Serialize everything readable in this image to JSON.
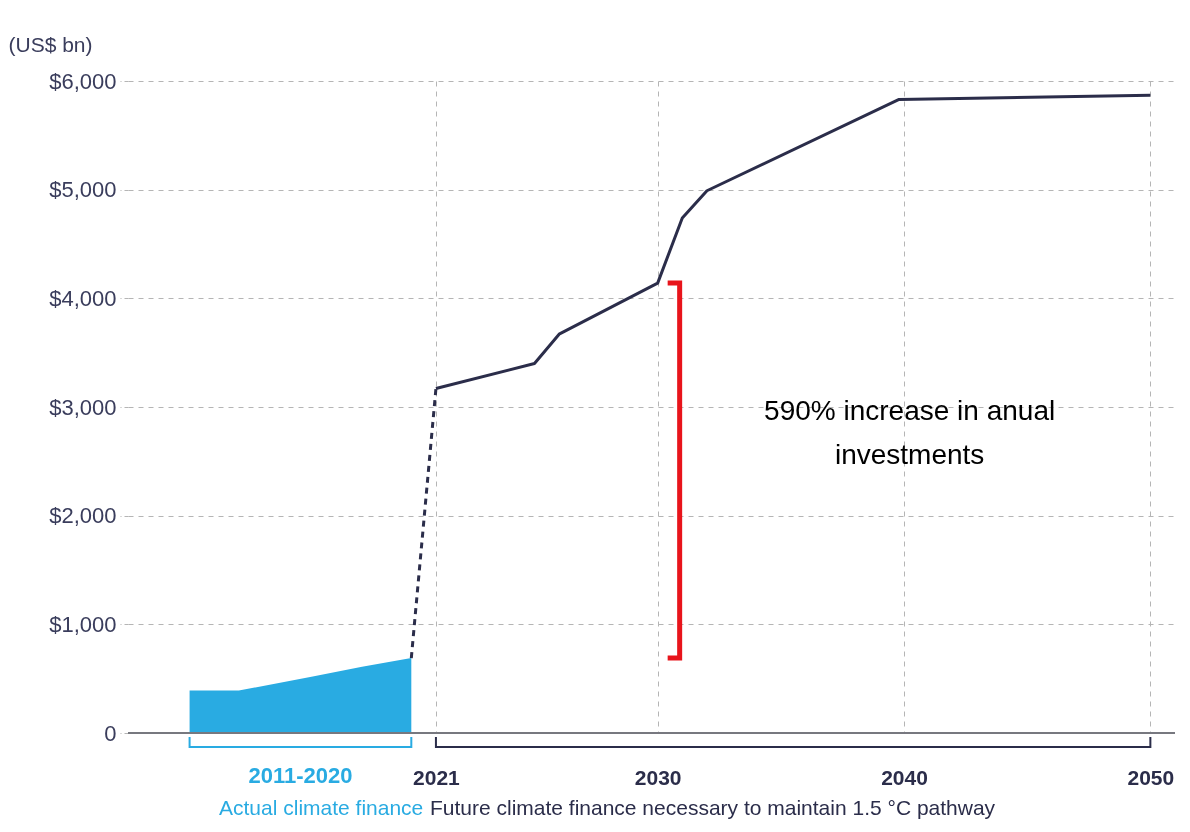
{
  "chart_data": {
    "type": "line",
    "ylabel": "(US$ bn)",
    "xlim": [
      2008.5,
      2051
    ],
    "xticks": [
      2021,
      2030,
      2040,
      2050
    ],
    "ylim": [
      0,
      6000
    ],
    "yticks": [
      0,
      {
        "value": 1000,
        "label": "$1,000"
      },
      {
        "value": 2000,
        "label": "$2,000"
      },
      {
        "value": 3000,
        "label": "$3,000"
      },
      {
        "value": 4000,
        "label": "$4,000"
      },
      {
        "value": 5000,
        "label": "$5,000"
      },
      {
        "value": 6000,
        "label": "$6,000"
      }
    ],
    "grid": true,
    "series": [
      {
        "type": "area",
        "color": "#29abe2",
        "x": [
          2011,
          2013,
          2016,
          2018,
          2020
        ],
        "values": [
          390,
          390,
          520,
          610,
          690
        ]
      },
      {
        "type": "line",
        "line_style": "dashed",
        "color": "#2b2d4a",
        "x": [
          2020,
          2021
        ],
        "values": [
          690,
          3170
        ]
      },
      {
        "line_style": "solid",
        "color": "#2b2d4a",
        "x": [
          2021,
          2025,
          2026,
          2030,
          2031,
          2032,
          2039.8,
          2050
        ],
        "values": [
          3170,
          3400,
          3670,
          4140,
          4740,
          4990,
          5830,
          5870
        ]
      }
    ],
    "annotations": [
      "2011-2020",
      "Actual climate finance",
      "Future climate finance necessary to maintain 1.5 °C pathway",
      "590% increase in anual investments"
    ]
  }
}
